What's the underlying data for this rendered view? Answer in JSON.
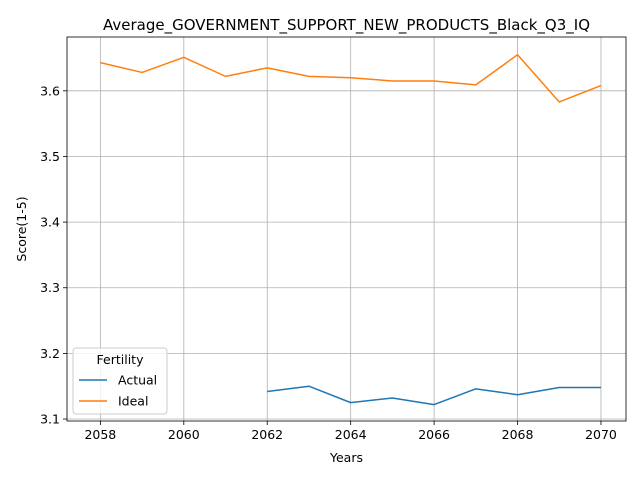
{
  "chart_data": {
    "type": "line",
    "title": "Average_GOVERNMENT_SUPPORT_NEW_PRODUCTS_Black_Q3_IQ",
    "xlabel": "Years",
    "ylabel": "Score(1-5)",
    "xlim": [
      2057.2,
      2070.6
    ],
    "ylim": [
      3.097,
      3.682
    ],
    "xticks": [
      2058,
      2060,
      2062,
      2064,
      2066,
      2068,
      2070
    ],
    "yticks": [
      3.1,
      3.2,
      3.3,
      3.4,
      3.5,
      3.6
    ],
    "grid": true,
    "legend": {
      "title": "Fertility",
      "position": "lower-left"
    },
    "series": [
      {
        "name": "Actual",
        "color": "#1f77b4",
        "x": [
          2062,
          2063,
          2064,
          2065,
          2066,
          2067,
          2068,
          2069,
          2070
        ],
        "y": [
          3.142,
          3.15,
          3.125,
          3.132,
          3.122,
          3.146,
          3.137,
          3.148,
          3.148
        ]
      },
      {
        "name": "Ideal",
        "color": "#ff7f0e",
        "x": [
          2058,
          2059,
          2060,
          2061,
          2062,
          2063,
          2064,
          2065,
          2066,
          2067,
          2068,
          2069,
          2070
        ],
        "y": [
          3.643,
          3.628,
          3.651,
          3.622,
          3.635,
          3.622,
          3.62,
          3.615,
          3.615,
          3.609,
          3.655,
          3.583,
          3.608
        ]
      }
    ]
  }
}
